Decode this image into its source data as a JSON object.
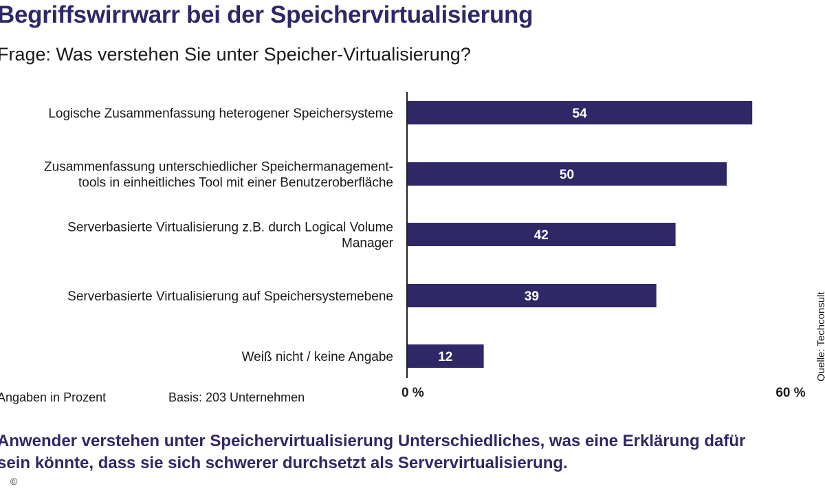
{
  "header": {
    "title": "Begriffswirrwarr bei der Speichervirtualisierung",
    "subtitle": "Frage: Was verstehen  Sie unter Speicher-Virtualisierung?"
  },
  "footer": {
    "unit_note": "Angaben in Prozent",
    "base_note": "Basis: 203 Unternehmen",
    "source": "Quelle: Techconsult",
    "conclusion_line1": "Anwender verstehen unter Speichervirtualisierung Unterschiedliches, was eine Erklärung dafür",
    "conclusion_line2": "sein könnte, dass sie sich schwerer durchsetzt als Servervirtualisierung.",
    "copyright": "©"
  },
  "colors": {
    "bar": "#2e2866",
    "title": "#2e2866",
    "axis": "#222222"
  },
  "chart_data": {
    "type": "bar",
    "orientation": "horizontal",
    "categories": [
      [
        "Logische Zusammenfassung heterogener Speichersysteme"
      ],
      [
        "Zusammenfassung unterschiedlicher Speichermanagement-",
        "tools in einheitliches Tool mit einer Benutzeroberfläche"
      ],
      [
        "Serverbasierte Virtualisierung z.B. durch Logical Volume",
        "Manager"
      ],
      [
        "Serverbasierte Virtualisierung auf Speichersystemebene"
      ],
      [
        "Weiß nicht / keine Angabe"
      ]
    ],
    "values": [
      54,
      50,
      42,
      39,
      12
    ],
    "xlim": [
      0,
      60
    ],
    "x_ticks": [
      "0 %",
      "60 %"
    ],
    "unit": "Angaben in Prozent",
    "grid": false,
    "legend": "none"
  }
}
